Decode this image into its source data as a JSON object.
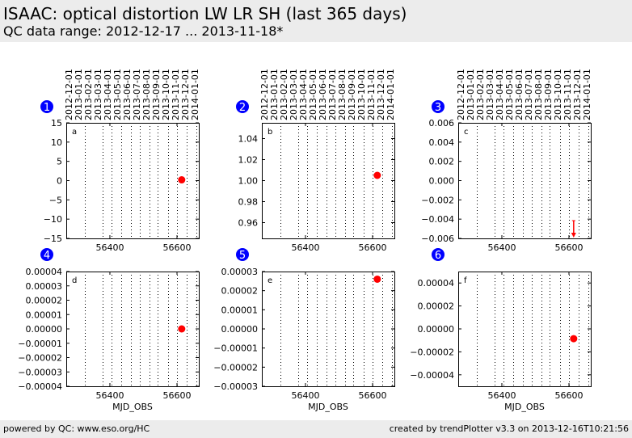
{
  "header": {
    "title": "ISAAC: optical distortion LW LR SH (last 365 days)",
    "subtitle": "QC data range: 2012-12-17 ... 2013-11-18*"
  },
  "footer": {
    "left": "powered by QC: www.eso.org/HC",
    "right": "created by trendPlotter v3.3 on 2013-12-16T10:21:56"
  },
  "colors": {
    "point": "#ff0000",
    "badge": "#0000ff",
    "grid": "#000000",
    "header_bg": "#ececec"
  },
  "chart_data": [
    {
      "type": "scatter",
      "panel_number": "1",
      "panel_letter": "a",
      "xlim": [
        56270,
        56665
      ],
      "xticks": [
        "56400",
        "56600"
      ],
      "ylim": [
        -15,
        15
      ],
      "yticks": [
        "15",
        "10",
        "5",
        "0",
        "−5",
        "−10",
        "−15"
      ],
      "top_date_ticks": [
        "2012-12-01",
        "2013-01-01",
        "2013-02-01",
        "2013-03-01",
        "2013-04-01",
        "2013-05-01",
        "2013-06-01",
        "2013-07-01",
        "2013-08-01",
        "2013-09-01",
        "2013-10-01",
        "2013-11-01",
        "2013-12-01",
        "2014-01-01"
      ],
      "points": [
        {
          "x": 56614,
          "y": 0.2
        }
      ]
    },
    {
      "type": "scatter",
      "panel_number": "2",
      "panel_letter": "b",
      "xlim": [
        56270,
        56665
      ],
      "xticks": [
        "56400",
        "56600"
      ],
      "ylim": [
        0.945,
        1.055
      ],
      "yticks": [
        "1.04",
        "1.02",
        "1.00",
        "0.98",
        "0.96"
      ],
      "top_date_ticks": [
        "2012-12-01",
        "2013-01-01",
        "2013-02-01",
        "2013-03-01",
        "2013-04-01",
        "2013-05-01",
        "2013-06-01",
        "2013-07-01",
        "2013-08-01",
        "2013-09-01",
        "2013-10-01",
        "2013-11-01",
        "2013-12-01",
        "2014-01-01"
      ],
      "points": [
        {
          "x": 56614,
          "y": 1.005
        }
      ]
    },
    {
      "type": "scatter",
      "panel_number": "3",
      "panel_letter": "c",
      "xlim": [
        56270,
        56665
      ],
      "xticks": [
        "56400",
        "56600"
      ],
      "ylim": [
        -0.006,
        0.006
      ],
      "yticks": [
        "0.006",
        "0.004",
        "0.002",
        "0.000",
        "−0.002",
        "−0.004",
        "−0.006"
      ],
      "top_date_ticks": [
        "2012-12-01",
        "2013-01-01",
        "2013-02-01",
        "2013-03-01",
        "2013-04-01",
        "2013-05-01",
        "2013-06-01",
        "2013-07-01",
        "2013-08-01",
        "2013-09-01",
        "2013-10-01",
        "2013-11-01",
        "2013-12-01",
        "2014-01-01"
      ],
      "points": [],
      "out_of_range_markers": [
        {
          "x": 56614,
          "direction": "below"
        }
      ]
    },
    {
      "type": "scatter",
      "panel_number": "4",
      "panel_letter": "d",
      "xlim": [
        56270,
        56665
      ],
      "xticks": [
        "56400",
        "56600"
      ],
      "xlabel": "MJD_OBS",
      "ylim": [
        -4e-05,
        4e-05
      ],
      "yticks": [
        "0.00004",
        "0.00003",
        "0.00002",
        "0.00001",
        "0.00000",
        "−0.00001",
        "−0.00002",
        "−0.00003",
        "−0.00004"
      ],
      "points": [
        {
          "x": 56614,
          "y": 0.0
        }
      ]
    },
    {
      "type": "scatter",
      "panel_number": "5",
      "panel_letter": "e",
      "xlim": [
        56270,
        56665
      ],
      "xticks": [
        "56400",
        "56600"
      ],
      "xlabel": "MJD_OBS",
      "ylim": [
        -3e-05,
        3e-05
      ],
      "yticks": [
        "0.00003",
        "0.00002",
        "0.00001",
        "0.00000",
        "−0.00001",
        "−0.00002",
        "−0.00003"
      ],
      "points": [
        {
          "x": 56614,
          "y": 2.6e-05
        }
      ]
    },
    {
      "type": "scatter",
      "panel_number": "6",
      "panel_letter": "f",
      "xlim": [
        56270,
        56665
      ],
      "xticks": [
        "56400",
        "56600"
      ],
      "xlabel": "MJD_OBS",
      "ylim": [
        -5e-05,
        5e-05
      ],
      "ytick_values": [
        4e-05,
        2e-05,
        0.0,
        -2e-05,
        -4e-05
      ],
      "yticks": [
        "0.00004",
        "0.00002",
        "0.00000",
        "−0.00002",
        "−0.00004"
      ],
      "points": [
        {
          "x": 56614,
          "y": -8.5e-06
        }
      ]
    }
  ]
}
